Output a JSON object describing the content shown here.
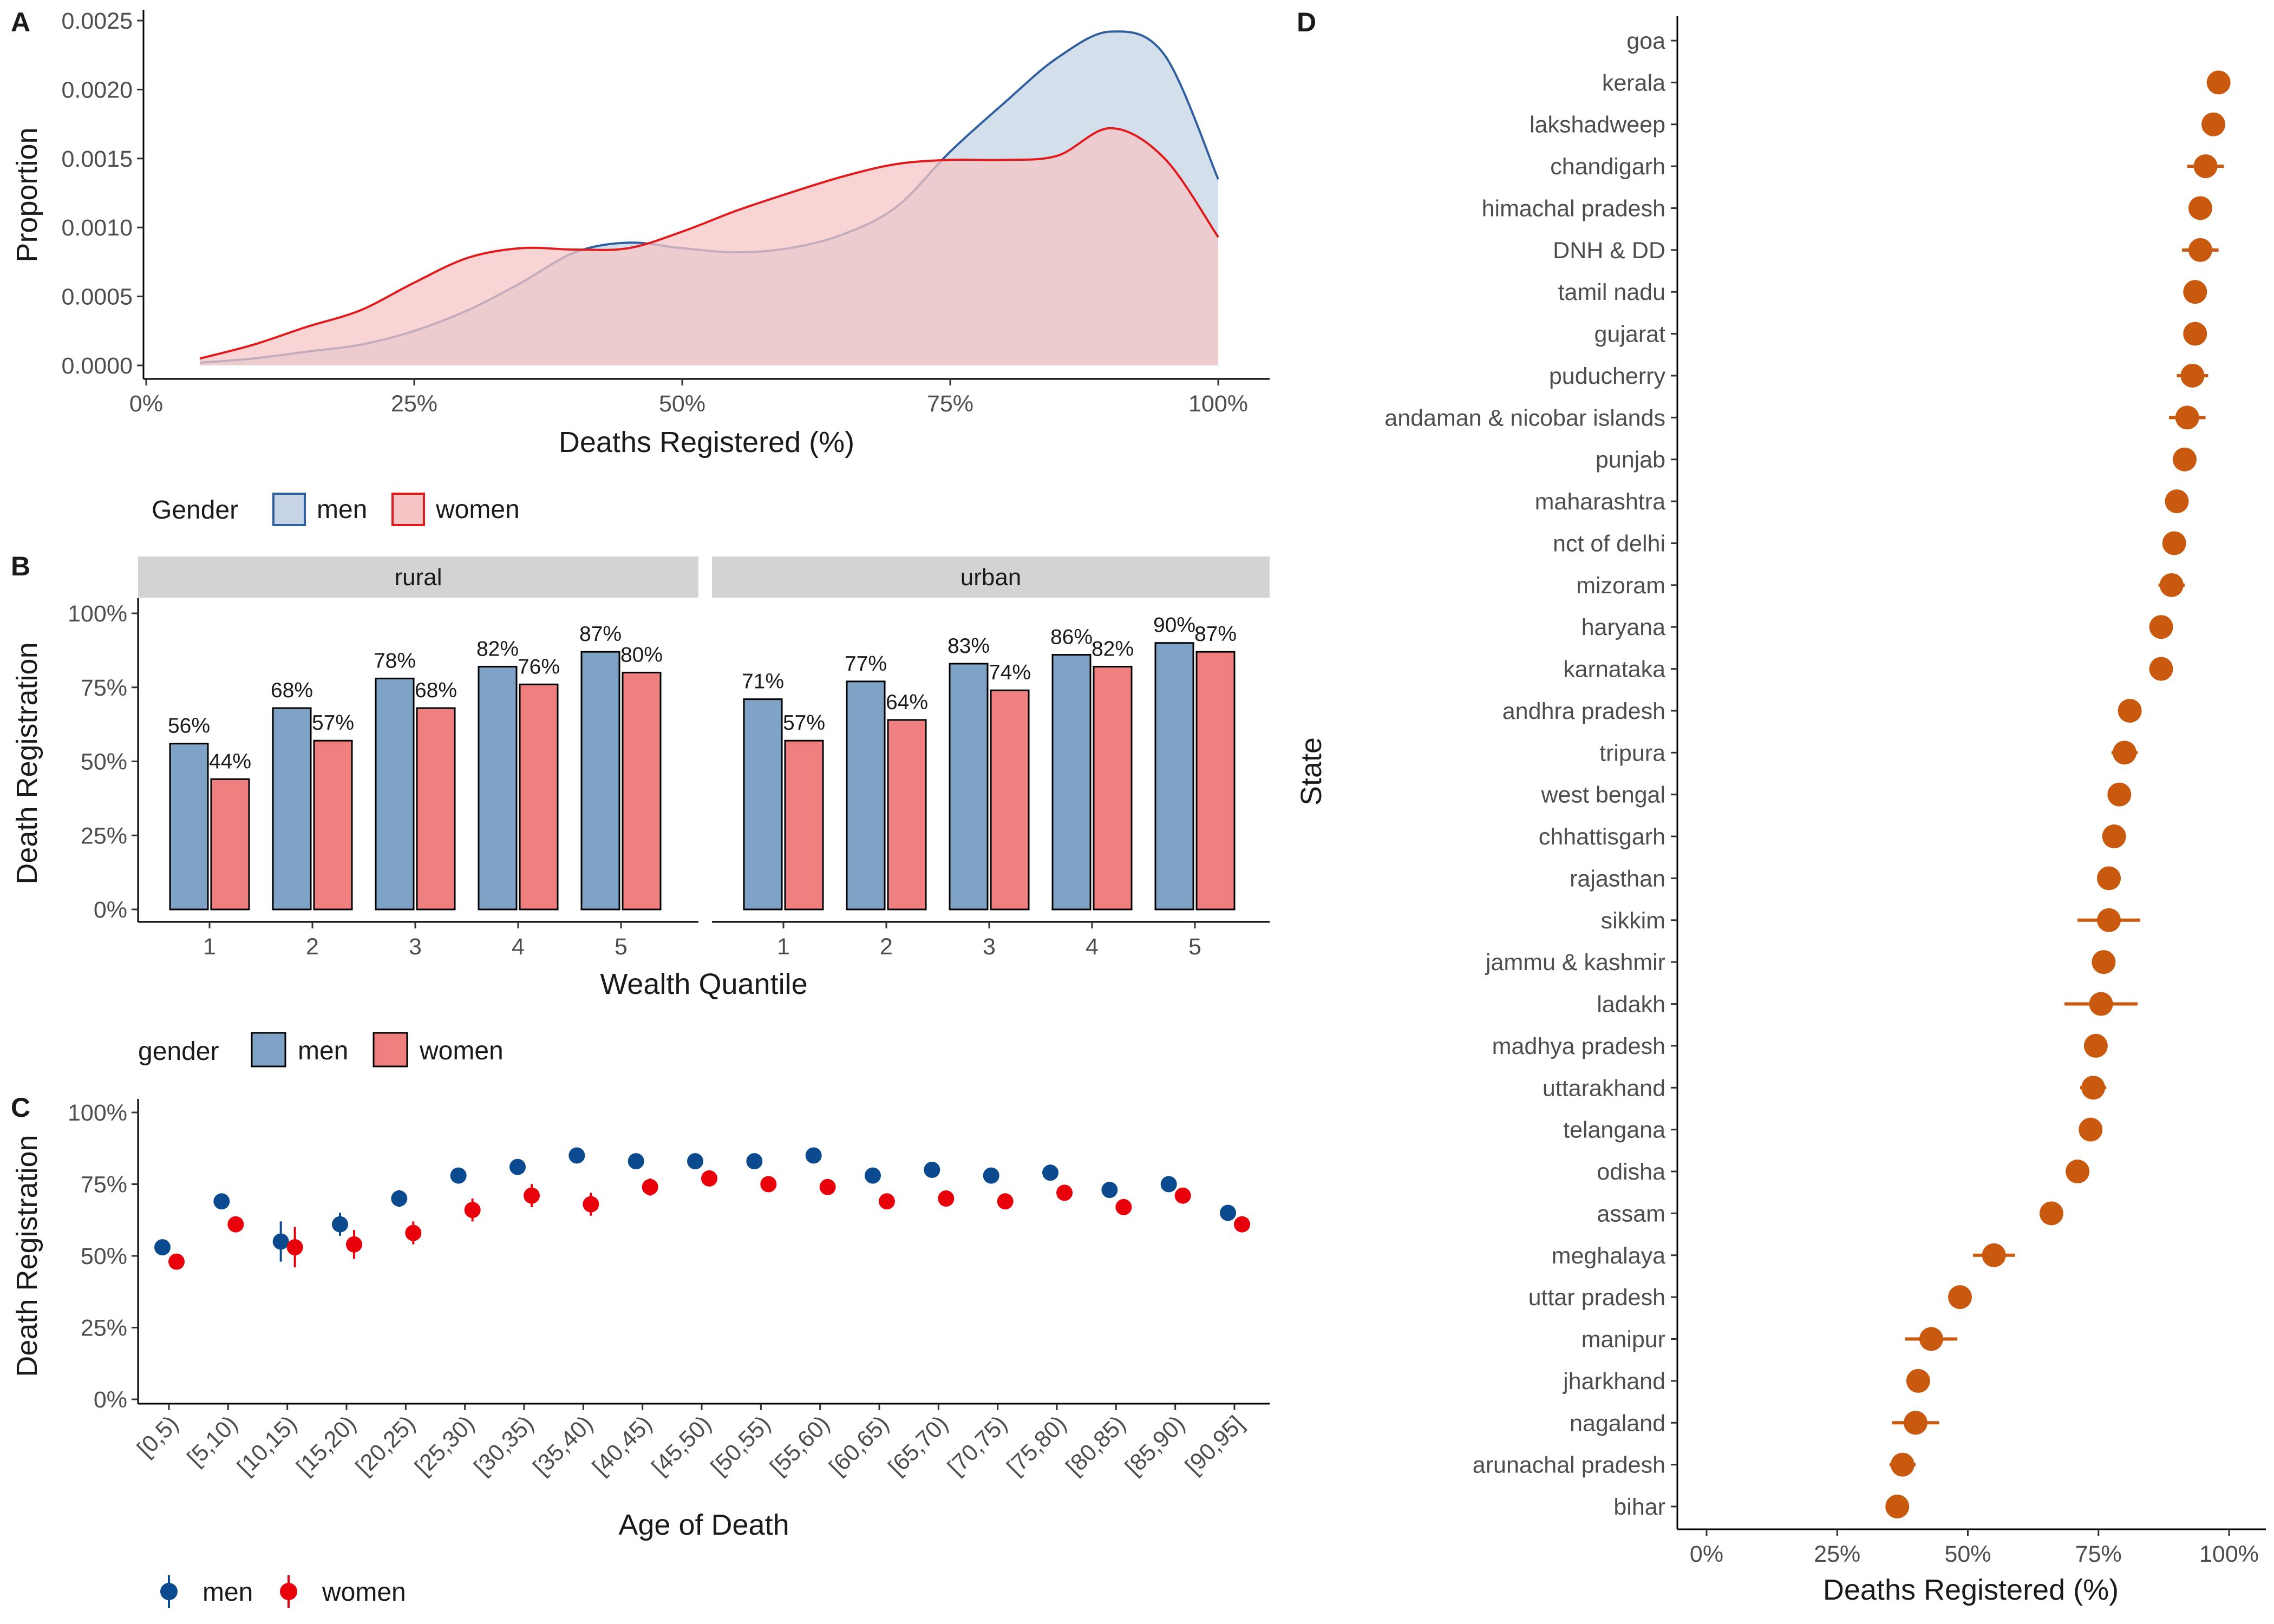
{
  "panels": {
    "A": "A",
    "B": "B",
    "C": "C",
    "D": "D"
  },
  "chart_data": [
    {
      "panel": "A",
      "type": "area",
      "xlabel": "Deaths Registered (%)",
      "ylabel": "Proportion",
      "xlim": [
        0,
        100
      ],
      "ylim": [
        0,
        0.0025
      ],
      "xticks": [
        "0%",
        "25%",
        "50%",
        "75%",
        "100%"
      ],
      "yticks": [
        "0.0000",
        "0.0005",
        "0.0010",
        "0.0015",
        "0.0020",
        "0.0025"
      ],
      "legend": {
        "title": "Gender",
        "position": "bottom",
        "items": [
          "men",
          "women"
        ]
      },
      "x": [
        5,
        10,
        15,
        20,
        25,
        30,
        35,
        40,
        45,
        50,
        55,
        60,
        65,
        70,
        75,
        80,
        85,
        90,
        95,
        100
      ],
      "series": [
        {
          "name": "men",
          "color": "#2f5f9e",
          "fill": "#c6d4e5",
          "values": [
            2e-05,
            5e-05,
            0.0001,
            0.00015,
            0.00025,
            0.0004,
            0.0006,
            0.00082,
            0.00089,
            0.00085,
            0.00082,
            0.00085,
            0.00095,
            0.00115,
            0.00155,
            0.0019,
            0.00223,
            0.00242,
            0.00225,
            0.00135
          ]
        },
        {
          "name": "women",
          "color": "#e31a1c",
          "fill": "#f5c5c6",
          "values": [
            5e-05,
            0.00015,
            0.00028,
            0.0004,
            0.0006,
            0.00078,
            0.00085,
            0.00084,
            0.00085,
            0.00097,
            0.00112,
            0.00125,
            0.00137,
            0.00146,
            0.00149,
            0.00149,
            0.00152,
            0.00172,
            0.0015,
            0.00093
          ]
        }
      ]
    },
    {
      "panel": "B",
      "type": "bar",
      "xlabel": "Wealth Quantile",
      "ylabel": "Death Registration",
      "ylim": [
        0,
        100
      ],
      "yticks": [
        "0%",
        "25%",
        "50%",
        "75%",
        "100%"
      ],
      "facets": [
        "rural",
        "urban"
      ],
      "categories": [
        "1",
        "2",
        "3",
        "4",
        "5"
      ],
      "legend": {
        "title": "gender",
        "position": "bottom",
        "items": [
          "men",
          "women"
        ]
      },
      "series": [
        {
          "name": "men",
          "color": "#7fa3c7",
          "rural": [
            56,
            68,
            78,
            82,
            87
          ],
          "urban": [
            71,
            77,
            83,
            86,
            90
          ],
          "labels_rural": [
            "56%",
            "68%",
            "78%",
            "82%",
            "87%"
          ],
          "labels_urban": [
            "71%",
            "77%",
            "83%",
            "86%",
            "90%"
          ]
        },
        {
          "name": "women",
          "color": "#f08080",
          "rural": [
            44,
            57,
            68,
            76,
            80
          ],
          "urban": [
            57,
            64,
            74,
            82,
            87
          ],
          "labels_rural": [
            "44%",
            "57%",
            "68%",
            "76%",
            "80%"
          ],
          "labels_urban": [
            "57%",
            "64%",
            "74%",
            "82%",
            "87%"
          ]
        }
      ]
    },
    {
      "panel": "C",
      "type": "scatter",
      "xlabel": "Age of Death",
      "ylabel": "Death Registration",
      "ylim": [
        0,
        100
      ],
      "yticks": [
        "0%",
        "25%",
        "50%",
        "75%",
        "100%"
      ],
      "categories": [
        "[0,5)",
        "[5,10)",
        "[10,15)",
        "[15,20)",
        "[20,25)",
        "[25,30)",
        "[30,35)",
        "[35,40)",
        "[40,45)",
        "[45,50)",
        "[50,55)",
        "[55,60)",
        "[60,65)",
        "[65,70)",
        "[70,75)",
        "[75,80)",
        "[80,85)",
        "[85,90)",
        "[90,95]"
      ],
      "legend": {
        "position": "bottom",
        "items": [
          "men",
          "women"
        ]
      },
      "series": [
        {
          "name": "men",
          "color": "#0b4a8f",
          "values": [
            53,
            69,
            55,
            61,
            70,
            78,
            81,
            85,
            83,
            83,
            83,
            85,
            78,
            80,
            78,
            79,
            73,
            75,
            65
          ],
          "err": [
            1.5,
            1.5,
            7,
            4,
            3,
            2,
            1.5,
            1.5,
            1.5,
            1.5,
            1.5,
            1.5,
            1.5,
            1.5,
            1.5,
            1.5,
            1.5,
            1.5,
            1.5
          ]
        },
        {
          "name": "women",
          "color": "#e8000b",
          "values": [
            48,
            61,
            53,
            54,
            58,
            66,
            71,
            68,
            74,
            77,
            75,
            74,
            69,
            70,
            69,
            72,
            67,
            71,
            61
          ],
          "err": [
            1.5,
            2,
            7,
            5,
            4,
            4,
            4,
            4,
            3,
            2,
            2,
            2,
            2,
            2,
            1.5,
            1.5,
            1.5,
            1.5,
            1.5
          ]
        }
      ]
    },
    {
      "panel": "D",
      "type": "scatter",
      "xlabel": "Deaths Registered (%)",
      "ylabel": "State",
      "xlim": [
        0,
        100
      ],
      "xticks": [
        "0%",
        "25%",
        "50%",
        "75%",
        "100%"
      ],
      "color": "#c9590f",
      "categories": [
        "goa",
        "kerala",
        "lakshadweep",
        "chandigarh",
        "himachal pradesh",
        "DNH & DD",
        "tamil nadu",
        "gujarat",
        "puducherry",
        "andaman & nicobar islands",
        "punjab",
        "maharashtra",
        "nct of delhi",
        "mizoram",
        "haryana",
        "karnataka",
        "andhra pradesh",
        "tripura",
        "west bengal",
        "chhattisgarh",
        "rajasthan",
        "sikkim",
        "jammu & kashmir",
        "ladakh",
        "madhya pradesh",
        "uttarakhand",
        "telangana",
        "odisha",
        "assam",
        "meghalaya",
        "uttar pradesh",
        "manipur",
        "jharkhand",
        "nagaland",
        "arunachal pradesh",
        "bihar"
      ],
      "values": [
        null,
        98,
        97,
        95.5,
        94.5,
        94.5,
        93.5,
        93.5,
        93,
        92,
        91.5,
        90,
        89.5,
        89,
        87,
        87,
        81,
        80,
        79,
        78,
        77,
        77,
        76,
        75.5,
        74.5,
        74,
        73.5,
        71,
        66,
        55,
        48.5,
        43,
        40.5,
        40,
        37.5,
        36.5
      ],
      "err": [
        0,
        0.5,
        1,
        3.5,
        1,
        3.5,
        1,
        1,
        3,
        3.5,
        1,
        1,
        1,
        2.5,
        1,
        1,
        1,
        2.5,
        1,
        1,
        1,
        6,
        2,
        7,
        1,
        2.5,
        1,
        1,
        1,
        4,
        1,
        5,
        1,
        4.5,
        2.5,
        1
      ]
    }
  ]
}
